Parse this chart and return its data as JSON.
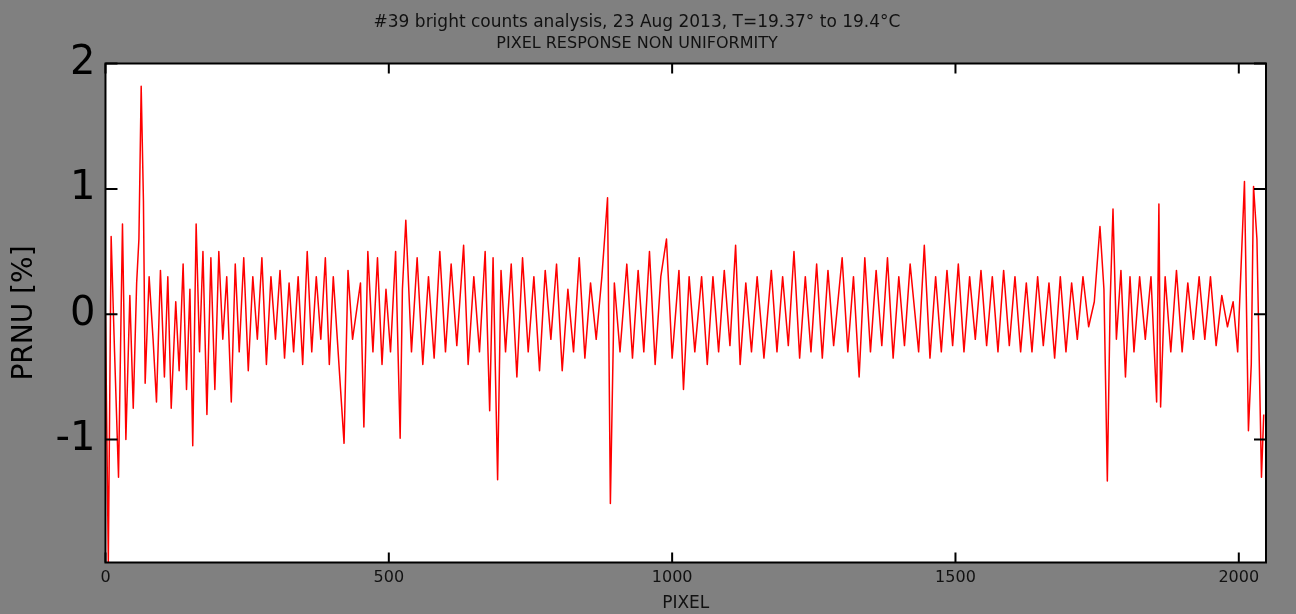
{
  "chart_data": {
    "type": "line",
    "title": "#39 bright counts analysis, 23 Aug 2013, T=19.37° to 19.4°C",
    "subtitle": "PIXEL RESPONSE NON UNIFORMITY",
    "xlabel": "PIXEL",
    "ylabel": "PRNU [%]",
    "xlim": [
      0,
      2048
    ],
    "ylim": [
      -1.98,
      2
    ],
    "xticks": [
      0,
      500,
      1000,
      1500,
      2000
    ],
    "yticks": [
      -1,
      0,
      1,
      2
    ],
    "grid": false,
    "legend": false,
    "marker": "none",
    "line_style": "solid",
    "series": [
      {
        "color": "#ff0000",
        "x": [
          0,
          5,
          10,
          16,
          23,
          30,
          36,
          43,
          49,
          55,
          59,
          63,
          67,
          70,
          77,
          84,
          90,
          97,
          104,
          110,
          116,
          124,
          130,
          137,
          143,
          149,
          154,
          160,
          166,
          172,
          179,
          186,
          193,
          200,
          207,
          214,
          222,
          229,
          236,
          244,
          252,
          260,
          268,
          276,
          284,
          292,
          300,
          308,
          316,
          324,
          332,
          340,
          348,
          356,
          364,
          372,
          380,
          388,
          395,
          402,
          421,
          428,
          436,
          450,
          456,
          463,
          472,
          480,
          488,
          495,
          503,
          512,
          520,
          524,
          530,
          540,
          550,
          560,
          570,
          580,
          590,
          600,
          610,
          620,
          632,
          640,
          650,
          660,
          670,
          678,
          684,
          692,
          698,
          706,
          716,
          726,
          736,
          746,
          756,
          766,
          776,
          786,
          796,
          806,
          816,
          826,
          836,
          846,
          856,
          866,
          876,
          886,
          891,
          898,
          908,
          920,
          930,
          940,
          950,
          960,
          970,
          980,
          990,
          1000,
          1012,
          1020,
          1030,
          1040,
          1052,
          1062,
          1072,
          1082,
          1092,
          1102,
          1112,
          1120,
          1130,
          1140,
          1150,
          1162,
          1175,
          1185,
          1195,
          1205,
          1215,
          1225,
          1235,
          1245,
          1255,
          1265,
          1275,
          1285,
          1300,
          1310,
          1320,
          1330,
          1340,
          1350,
          1360,
          1370,
          1380,
          1390,
          1400,
          1410,
          1420,
          1435,
          1445,
          1455,
          1465,
          1475,
          1485,
          1495,
          1505,
          1515,
          1525,
          1535,
          1545,
          1555,
          1565,
          1575,
          1585,
          1595,
          1605,
          1615,
          1625,
          1635,
          1645,
          1655,
          1665,
          1675,
          1685,
          1695,
          1705,
          1715,
          1725,
          1735,
          1745,
          1755,
          1762,
          1768,
          1773,
          1778,
          1784,
          1792,
          1800,
          1808,
          1815,
          1825,
          1835,
          1845,
          1855,
          1859,
          1862,
          1870,
          1880,
          1890,
          1900,
          1910,
          1920,
          1930,
          1940,
          1950,
          1960,
          1970,
          1980,
          1990,
          1998,
          2010,
          2017,
          2022,
          2026,
          2032,
          2040,
          2044
        ],
        "values": [
          0,
          -1.98,
          0.62,
          -0.3,
          -1.3,
          0.72,
          -1,
          0.15,
          -0.75,
          0.25,
          0.6,
          1.82,
          0.9,
          -0.55,
          0.3,
          -0.2,
          -0.7,
          0.35,
          -0.5,
          0.3,
          -0.75,
          0.1,
          -0.45,
          0.4,
          -0.6,
          0.2,
          -1.05,
          0.72,
          -0.3,
          0.5,
          -0.8,
          0.45,
          -0.6,
          0.5,
          -0.2,
          0.3,
          -0.7,
          0.4,
          -0.3,
          0.45,
          -0.45,
          0.3,
          -0.2,
          0.45,
          -0.4,
          0.3,
          -0.2,
          0.35,
          -0.35,
          0.25,
          -0.3,
          0.3,
          -0.4,
          0.5,
          -0.3,
          0.3,
          -0.2,
          0.45,
          -0.4,
          0.3,
          -1.03,
          0.35,
          -0.2,
          0.25,
          -0.9,
          0.5,
          -0.3,
          0.45,
          -0.4,
          0.2,
          -0.3,
          0.5,
          -0.99,
          0.2,
          0.75,
          -0.3,
          0.45,
          -0.4,
          0.3,
          -0.35,
          0.5,
          -0.3,
          0.4,
          -0.25,
          0.55,
          -0.4,
          0.3,
          -0.3,
          0.5,
          -0.77,
          0.45,
          -1.32,
          0.35,
          -0.3,
          0.4,
          -0.5,
          0.45,
          -0.3,
          0.3,
          -0.45,
          0.35,
          -0.2,
          0.4,
          -0.45,
          0.2,
          -0.3,
          0.45,
          -0.35,
          0.25,
          -0.2,
          0.3,
          0.93,
          -1.51,
          0.25,
          -0.3,
          0.4,
          -0.35,
          0.35,
          -0.3,
          0.5,
          -0.4,
          0.3,
          0.6,
          -0.35,
          0.35,
          -0.6,
          0.3,
          -0.3,
          0.3,
          -0.4,
          0.3,
          -0.3,
          0.35,
          -0.25,
          0.55,
          -0.4,
          0.25,
          -0.3,
          0.3,
          -0.35,
          0.35,
          -0.3,
          0.3,
          -0.25,
          0.5,
          -0.35,
          0.3,
          -0.3,
          0.4,
          -0.35,
          0.35,
          -0.25,
          0.45,
          -0.3,
          0.3,
          -0.5,
          0.45,
          -0.3,
          0.35,
          -0.25,
          0.45,
          -0.35,
          0.3,
          -0.25,
          0.4,
          -0.3,
          0.55,
          -0.35,
          0.3,
          -0.3,
          0.35,
          -0.25,
          0.4,
          -0.3,
          0.3,
          -0.2,
          0.35,
          -0.25,
          0.3,
          -0.3,
          0.35,
          -0.25,
          0.3,
          -0.3,
          0.25,
          -0.3,
          0.3,
          -0.25,
          0.25,
          -0.35,
          0.3,
          -0.3,
          0.25,
          -0.2,
          0.3,
          -0.1,
          0.1,
          0.7,
          0.2,
          -1.33,
          0.1,
          0.84,
          -0.2,
          0.35,
          -0.5,
          0.3,
          -0.3,
          0.3,
          -0.2,
          0.3,
          -0.7,
          0.88,
          -0.74,
          0.3,
          -0.3,
          0.35,
          -0.3,
          0.25,
          -0.2,
          0.3,
          -0.2,
          0.3,
          -0.25,
          0.15,
          -0.1,
          0.1,
          -0.3,
          1.06,
          -0.93,
          -0.4,
          1.02,
          0.6,
          -1.3,
          -0.8
        ]
      }
    ]
  }
}
